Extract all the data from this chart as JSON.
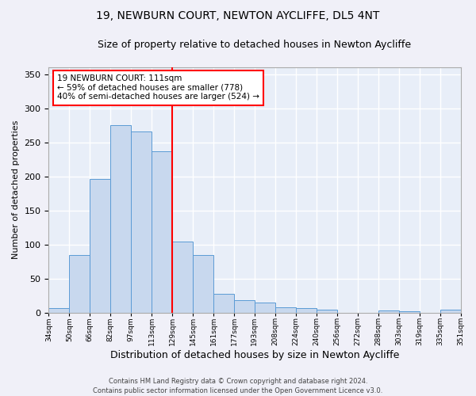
{
  "title1": "19, NEWBURN COURT, NEWTON AYCLIFFE, DL5 4NT",
  "title2": "Size of property relative to detached houses in Newton Aycliffe",
  "xlabel": "Distribution of detached houses by size in Newton Aycliffe",
  "ylabel": "Number of detached properties",
  "footer": "Contains HM Land Registry data © Crown copyright and database right 2024.\nContains public sector information licensed under the Open Government Licence v3.0.",
  "bar_labels": [
    "34sqm",
    "50sqm",
    "66sqm",
    "82sqm",
    "97sqm",
    "113sqm",
    "129sqm",
    "145sqm",
    "161sqm",
    "177sqm",
    "193sqm",
    "208sqm",
    "224sqm",
    "240sqm",
    "256sqm",
    "272sqm",
    "288sqm",
    "303sqm",
    "319sqm",
    "335sqm",
    "351sqm"
  ],
  "bar_values": [
    6,
    84,
    196,
    275,
    266,
    237,
    104,
    84,
    27,
    18,
    15,
    8,
    6,
    4,
    0,
    0,
    3,
    2,
    0,
    4
  ],
  "bar_color": "#c8d8ee",
  "bar_edge_color": "#5b9bd5",
  "vline_color": "red",
  "vline_x": 6.0,
  "annotation_text": "19 NEWBURN COURT: 111sqm\n← 59% of detached houses are smaller (778)\n40% of semi-detached houses are larger (524) →",
  "annotation_box_color": "white",
  "annotation_box_edge": "red",
  "ylim": [
    0,
    360
  ],
  "yticks": [
    0,
    50,
    100,
    150,
    200,
    250,
    300,
    350
  ],
  "bg_color": "#e8eef8",
  "grid_color": "white",
  "fig_bg": "#f0f0f8",
  "title1_fontsize": 10,
  "title2_fontsize": 9,
  "xlabel_fontsize": 9,
  "ylabel_fontsize": 8,
  "footer_fontsize": 6,
  "annot_fontsize": 7.5
}
